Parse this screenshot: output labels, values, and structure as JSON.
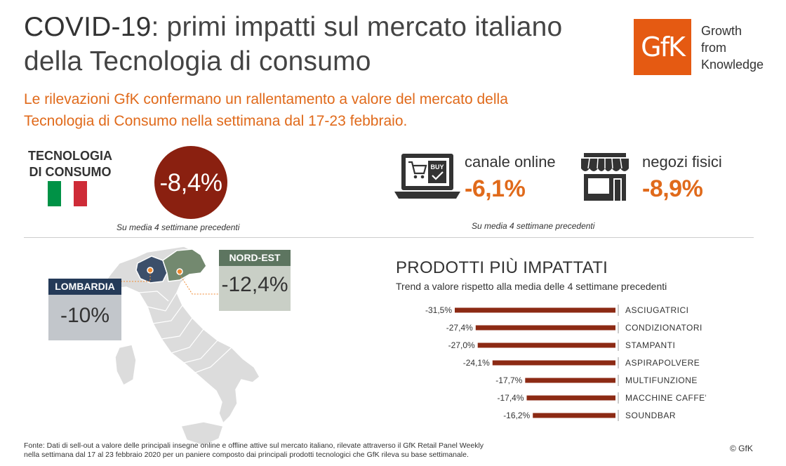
{
  "header": {
    "title_bold": "COVID-19",
    "title_rest": ": primi impatti sul mercato italiano",
    "title_line2": "della Tecnologia di consumo",
    "logo_text": "GfK",
    "tagline": [
      "Growth",
      "from",
      "Knowledge"
    ],
    "subtitle_line1": "Le rilevazioni GfK confermano un rallentamento a valore del mercato della",
    "subtitle_line2": "Tecnologia di Consumo nella settimana dal 17-23 febbraio."
  },
  "total": {
    "label_line1": "TECNOLOGIA",
    "label_line2": "DI CONSUMO",
    "value": "-8,4%",
    "note": "Su media 4 settimane precedenti"
  },
  "channels": {
    "online_label": "canale online",
    "online_value": "-6,1%",
    "online_icon": "laptop-shopping-cart-icon",
    "online_icon_text": "BUY",
    "store_label": "negozi fisici",
    "store_value": "-8,9%",
    "store_icon": "storefront-icon",
    "note": "Su media 4 settimane precedenti"
  },
  "regions": {
    "lombardia_name": "LOMBARDIA",
    "lombardia_value": "-10%",
    "nordest_name": "NORD-EST",
    "nordest_value": "-12,4%"
  },
  "products": {
    "title": "PRODOTTI PIÙ IMPATTATI",
    "subtitle": "Trend a valore rispetto alla media delle 4 settimane precedenti"
  },
  "chart_data": {
    "type": "bar",
    "orientation": "horizontal",
    "categories": [
      "ASCIUGATRICI",
      "CONDIZIONATORI",
      "STAMPANTI",
      "ASPIRAPOLVERE",
      "MULTIFUNZIONE",
      "MACCHINE CAFFE'",
      "SOUNDBAR"
    ],
    "values": [
      -31.5,
      -27.4,
      -27.0,
      -24.1,
      -17.7,
      -17.4,
      -16.2
    ],
    "data_labels": [
      "-31,5%",
      "-27,4%",
      "-27,0%",
      "-24,1%",
      "-17,7%",
      "-17,4%",
      "-16,2%"
    ],
    "xlim": [
      -31.5,
      0
    ],
    "grid": false,
    "legend": "none"
  },
  "footer": {
    "source_line1": "Fonte: Dati di sell-out a valore delle principali insegne online e offline attive sul mercato italiano, rilevate attraverso il GfK Retail Panel Weekly",
    "source_line2": "nella settimana dal 17 al 23 febbraio 2020 per un paniere composto dai principali  prodotti tecnologici che GfK rileva su base settimanale.",
    "copyright": "© GfK"
  },
  "colors": {
    "brand_orange": "#e55a12",
    "accent_orange_text": "#e06a1b",
    "dark_red": "#8a2010",
    "bar_color": "#8c2a14",
    "lombardia": "#243a58",
    "nordest": "#5d7560",
    "italy_flag": [
      "#009246",
      "#ffffff",
      "#ce2b37"
    ]
  }
}
